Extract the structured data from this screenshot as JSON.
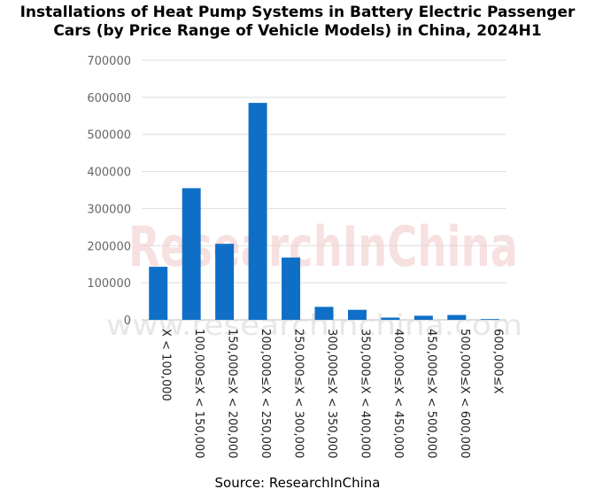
{
  "chart_data": {
    "type": "bar",
    "title_lines": [
      "Installations of Heat Pump Systems in Battery Electric Passenger",
      "Cars (by Price Range of Vehicle Models) in China, 2024H1"
    ],
    "categories": [
      "X < 100,000",
      "100,000≤X < 150,000",
      "150,000≤X < 200,000",
      "200,000≤X < 250,000",
      "250,000≤X < 300,000",
      "300,000≤X < 350,000",
      "350,000≤X < 400,000",
      "400,000≤X < 450,000",
      "450,000≤X < 500,000",
      "500,000≤X < 600,000",
      "600,000≤X"
    ],
    "values": [
      143000,
      355000,
      205000,
      585000,
      168000,
      35000,
      27000,
      6000,
      11000,
      13000,
      2000
    ],
    "ylim": [
      0,
      700000
    ],
    "yticks": [
      0,
      100000,
      200000,
      300000,
      400000,
      500000,
      600000,
      700000
    ],
    "grid": true,
    "bar_color": "#0f6fc6",
    "xlabel": "",
    "ylabel": ""
  },
  "source": "Source: ResearchInChina",
  "watermark": {
    "main": "ResearchInChina",
    "sub": "www.researchinchina.com"
  }
}
